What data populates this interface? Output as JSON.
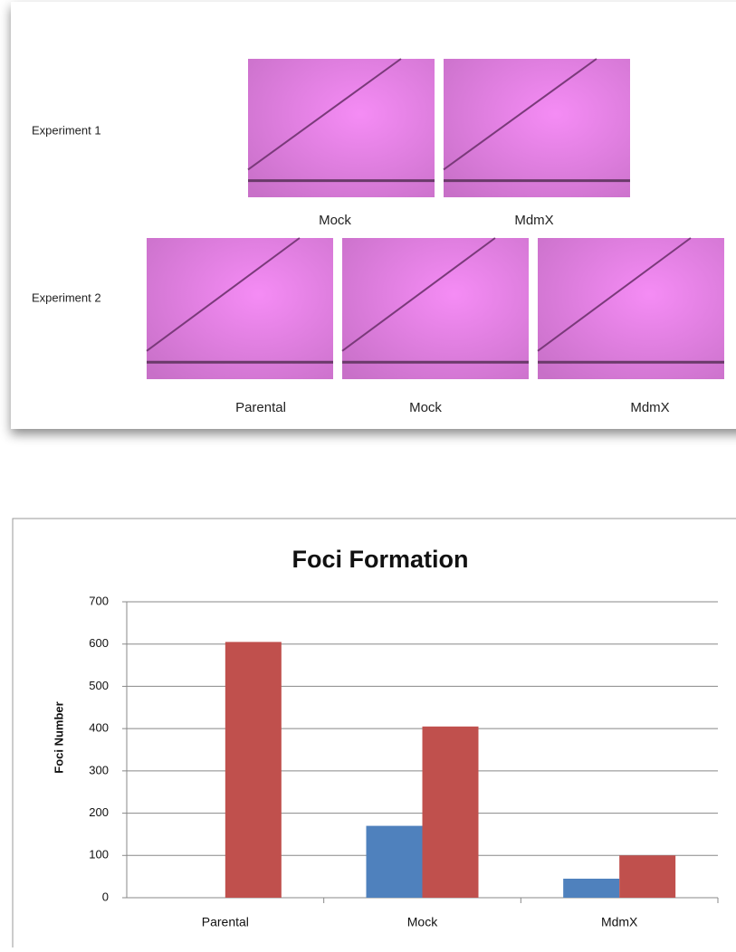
{
  "panel": {
    "rows": [
      {
        "label": "Experiment 1",
        "captions": [
          "Mock",
          "MdmX"
        ]
      },
      {
        "label": "Experiment 2",
        "captions": [
          "Parental",
          "Mock",
          "MdmX"
        ]
      }
    ]
  },
  "chart_data": {
    "type": "bar",
    "title": "Foci Formation",
    "y_label": "Foci Number",
    "categories": [
      "Parental",
      "Mock",
      "MdmX"
    ],
    "series": [
      {
        "color": "#4f81bd",
        "values": [
          null,
          170,
          45
        ]
      },
      {
        "color": "#c0504d",
        "values": [
          605,
          405,
          100
        ]
      }
    ],
    "ylim": [
      0,
      700
    ],
    "yticks": [
      0,
      100,
      200,
      300,
      400,
      500,
      600,
      700
    ],
    "grid": true
  }
}
